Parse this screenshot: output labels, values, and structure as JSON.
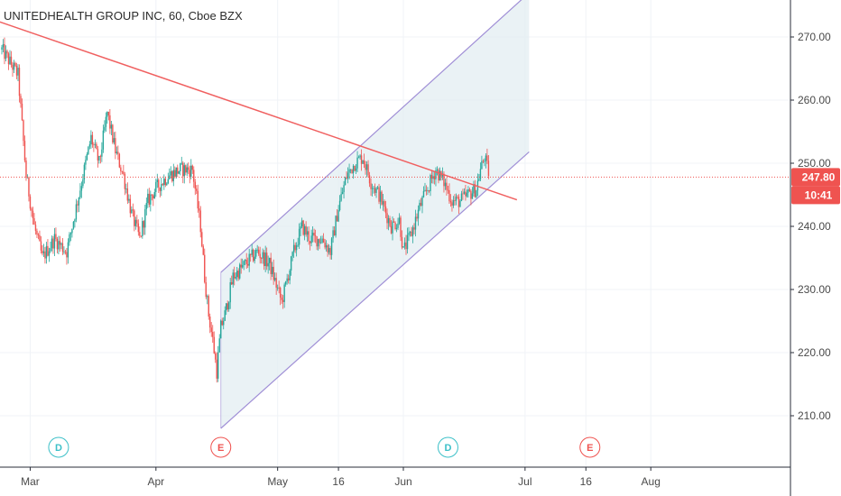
{
  "chart_data": {
    "type": "candlestick",
    "title": "UNITEDHEALTH GROUP INC, 60, Cboe BZX",
    "ylim": [
      203,
      276.5
    ],
    "y_ticks": [
      {
        "value": 210,
        "label": "210.00"
      },
      {
        "value": 220,
        "label": "220.00"
      },
      {
        "value": 230,
        "label": "230.00"
      },
      {
        "value": 240,
        "label": "240.00"
      },
      {
        "value": 250,
        "label": "250.00"
      },
      {
        "value": 260,
        "label": "260.00"
      },
      {
        "value": 270,
        "label": "270.00"
      }
    ],
    "x_ticks": [
      {
        "label": "Mar",
        "day": 7
      },
      {
        "label": "Apr",
        "day": 38
      },
      {
        "label": "May",
        "day": 68
      },
      {
        "label": "16",
        "day": 83
      },
      {
        "label": "Jun",
        "day": 99
      },
      {
        "label": "Jul",
        "day": 129
      },
      {
        "label": "16",
        "day": 144
      },
      {
        "label": "Aug",
        "day": 160
      }
    ],
    "price_path": [
      {
        "day": 0,
        "price": 268
      },
      {
        "day": 4,
        "price": 264
      },
      {
        "day": 6,
        "price": 248
      },
      {
        "day": 8,
        "price": 240
      },
      {
        "day": 10,
        "price": 235
      },
      {
        "day": 13,
        "price": 238
      },
      {
        "day": 16,
        "price": 236
      },
      {
        "day": 19,
        "price": 245
      },
      {
        "day": 22,
        "price": 254
      },
      {
        "day": 24,
        "price": 250
      },
      {
        "day": 26,
        "price": 258
      },
      {
        "day": 28,
        "price": 252
      },
      {
        "day": 30,
        "price": 248
      },
      {
        "day": 32,
        "price": 242
      },
      {
        "day": 34,
        "price": 238
      },
      {
        "day": 36,
        "price": 244
      },
      {
        "day": 38,
        "price": 246
      },
      {
        "day": 41,
        "price": 248
      },
      {
        "day": 44,
        "price": 249
      },
      {
        "day": 47,
        "price": 249
      },
      {
        "day": 49,
        "price": 240
      },
      {
        "day": 50,
        "price": 232
      },
      {
        "day": 51,
        "price": 226
      },
      {
        "day": 52,
        "price": 222
      },
      {
        "day": 53,
        "price": 217
      },
      {
        "day": 54,
        "price": 224
      },
      {
        "day": 55,
        "price": 226
      },
      {
        "day": 57,
        "price": 232
      },
      {
        "day": 60,
        "price": 234
      },
      {
        "day": 63,
        "price": 236
      },
      {
        "day": 66,
        "price": 234
      },
      {
        "day": 69,
        "price": 228
      },
      {
        "day": 72,
        "price": 236
      },
      {
        "day": 74,
        "price": 240
      },
      {
        "day": 76,
        "price": 238
      },
      {
        "day": 79,
        "price": 238
      },
      {
        "day": 81,
        "price": 236
      },
      {
        "day": 83,
        "price": 243
      },
      {
        "day": 85,
        "price": 248
      },
      {
        "day": 87,
        "price": 250
      },
      {
        "day": 89,
        "price": 251
      },
      {
        "day": 91,
        "price": 247
      },
      {
        "day": 93,
        "price": 245
      },
      {
        "day": 96,
        "price": 240
      },
      {
        "day": 98,
        "price": 241
      },
      {
        "day": 99,
        "price": 236
      },
      {
        "day": 101,
        "price": 239
      },
      {
        "day": 103,
        "price": 243
      },
      {
        "day": 105,
        "price": 246
      },
      {
        "day": 107,
        "price": 249
      },
      {
        "day": 109,
        "price": 247
      },
      {
        "day": 111,
        "price": 244
      },
      {
        "day": 113,
        "price": 244
      },
      {
        "day": 115,
        "price": 245
      },
      {
        "day": 117,
        "price": 246
      },
      {
        "day": 118,
        "price": 249
      },
      {
        "day": 119,
        "price": 251
      },
      {
        "day": 120,
        "price": 248.5
      }
    ],
    "price_range_days": [
      0,
      120
    ],
    "trend_line": {
      "start": {
        "day": -1,
        "price": 272.5
      },
      "end": {
        "day": 127,
        "price": 244.2
      }
    },
    "channel": {
      "upper": {
        "start": {
          "day": 54,
          "price": 232.7
        },
        "end": {
          "day": 130,
          "price": 277
        }
      },
      "lower": {
        "start": {
          "day": 54,
          "price": 208
        },
        "end": {
          "day": 130,
          "price": 251.8
        }
      }
    },
    "current_price": {
      "value": 247.8,
      "label": "247.80"
    },
    "countdown": {
      "label": "10:41"
    },
    "events": [
      {
        "type": "dividend",
        "letter": "D",
        "day": 14
      },
      {
        "type": "earnings",
        "letter": "E",
        "day": 54
      },
      {
        "type": "dividend",
        "letter": "D",
        "day": 110
      },
      {
        "type": "earnings",
        "letter": "E",
        "day": 145
      }
    ],
    "colors": {
      "up": "#26a69a",
      "down": "#ef5350",
      "trend": "#f06060",
      "channel_line": "#a08fd6",
      "channel_fill": "#e3eef1",
      "dividend": "#3cc0c8",
      "earnings": "#ef5350",
      "price_tag": "#ef5350"
    }
  }
}
